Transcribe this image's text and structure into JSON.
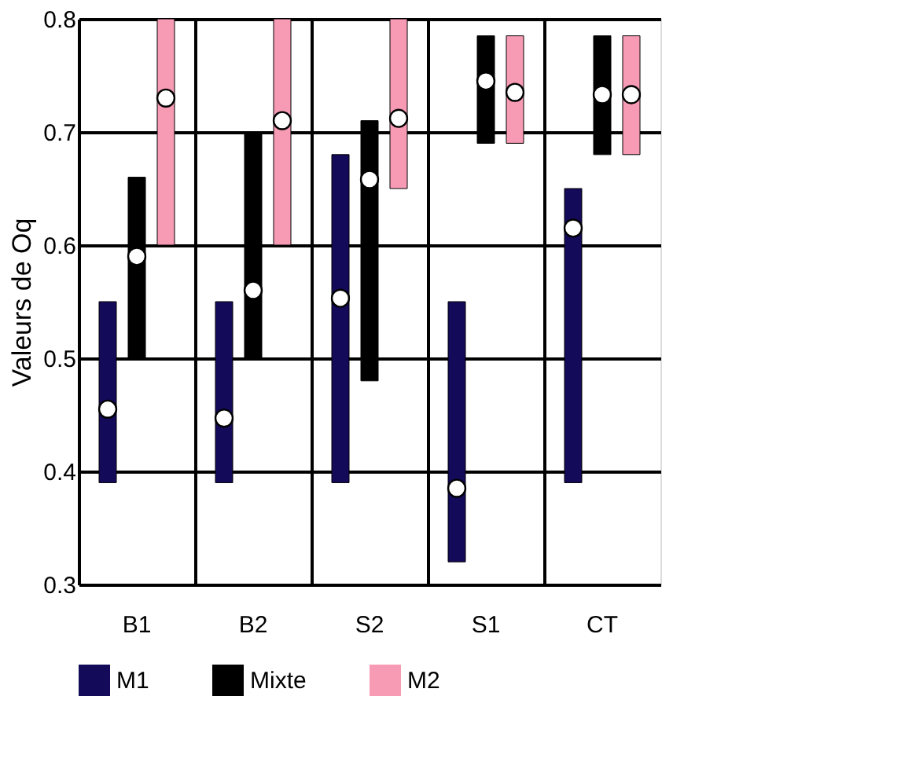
{
  "chart_data": {
    "type": "bar",
    "ylabel": "Valeurs de Oq",
    "categories": [
      "B1",
      "B2",
      "S2",
      "S1",
      "CT"
    ],
    "series": [
      {
        "name": "M1",
        "color": "#140a5a",
        "base": [
          0.39,
          0.39,
          0.39,
          0.32,
          0.39
        ],
        "values": [
          0.16,
          0.16,
          0.29,
          0.23,
          0.26
        ]
      },
      {
        "name": "Mixte",
        "color": "#000000",
        "base": [
          0.5,
          0.5,
          0.48,
          0.69,
          0.68
        ],
        "values": [
          0.16,
          0.2,
          0.23,
          0.095,
          0.105
        ]
      },
      {
        "name": "M2",
        "color": "#f79bb5",
        "base": [
          0.6,
          0.6,
          0.65,
          0.69,
          0.68
        ],
        "values": [
          0.2,
          0.2,
          0.15,
          0.095,
          0.105
        ]
      },
      {
        "type": "scatter",
        "marker": "circle",
        "color": "#000000",
        "x": [
          "B1",
          "B2",
          "S2",
          "S1",
          "CT"
        ],
        "values": [
          0.455,
          0.447,
          0.553,
          0.385,
          0.615
        ]
      },
      {
        "type": "scatter",
        "marker": "circle",
        "color": "#000000",
        "x": [
          "B1",
          "B2",
          "S2",
          "S1",
          "CT"
        ],
        "values": [
          0.59,
          0.56,
          0.658,
          0.745,
          0.733
        ]
      },
      {
        "type": "scatter",
        "marker": "circle",
        "color": "#000000",
        "x": [
          "B1",
          "B2",
          "S2",
          "S1",
          "CT"
        ],
        "values": [
          0.73,
          0.71,
          0.712,
          0.735,
          0.733
        ]
      }
    ],
    "ylim": [
      0.3,
      0.8
    ],
    "yticks": [
      0.3,
      0.4,
      0.5,
      0.6,
      0.7,
      0.8
    ],
    "grid": true,
    "legend": "bottom"
  }
}
